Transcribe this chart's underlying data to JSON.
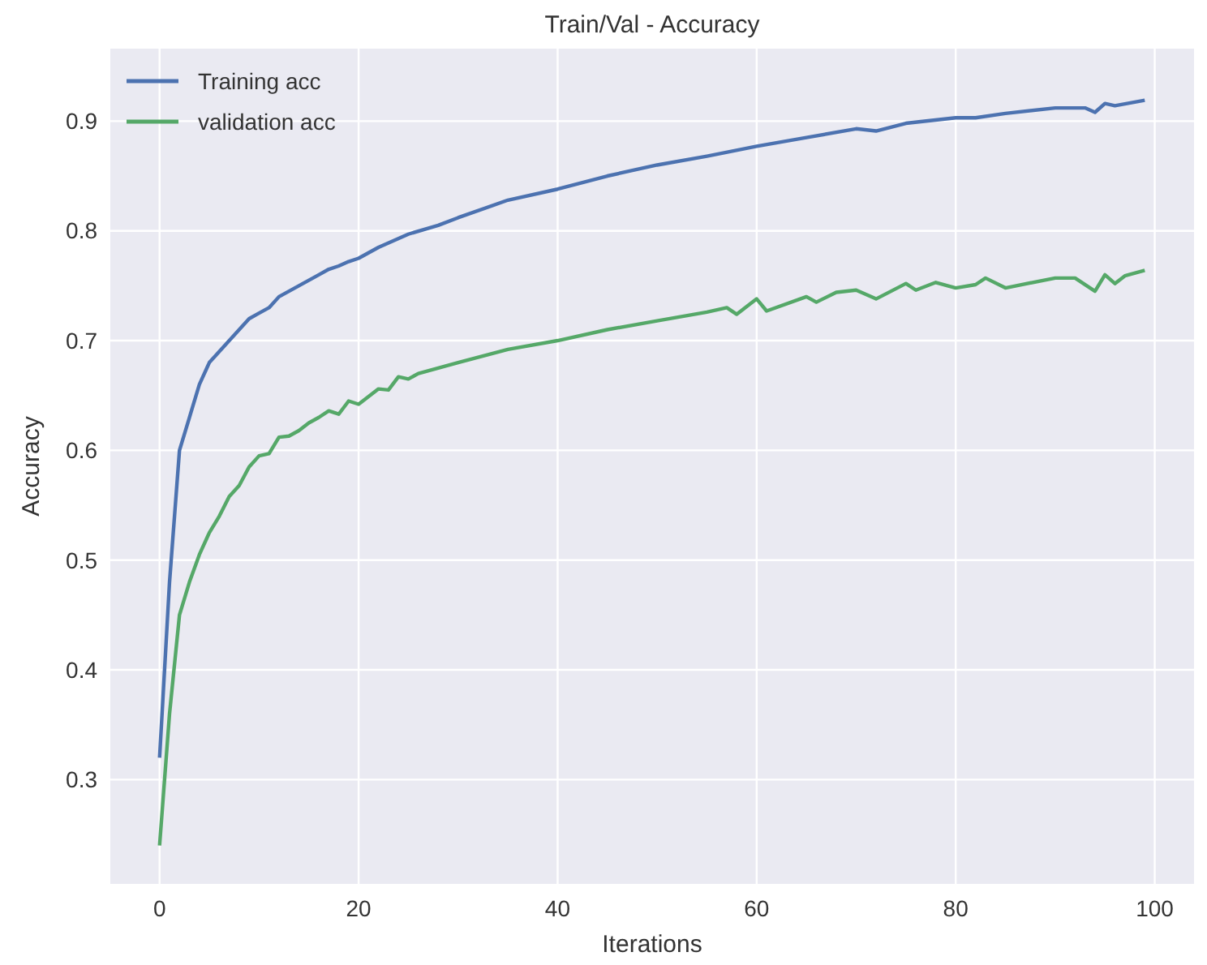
{
  "chart_data": {
    "type": "line",
    "title": "Train/Val - Accuracy",
    "xlabel": "Iterations",
    "ylabel": "Accuracy",
    "xlim": [
      -4.95,
      103.95
    ],
    "ylim": [
      0.205,
      0.966
    ],
    "xticks": [
      0,
      20,
      40,
      60,
      80,
      100
    ],
    "yticks": [
      0.3,
      0.4,
      0.5,
      0.6,
      0.7,
      0.8,
      0.9
    ],
    "grid": true,
    "legend": "top left",
    "line_style": "solid",
    "marker": "none",
    "series": [
      {
        "name": "Training acc",
        "color": "#4c72b0",
        "x": [
          0,
          1,
          2,
          3,
          4,
          5,
          6,
          7,
          8,
          9,
          10,
          11,
          12,
          13,
          14,
          15,
          16,
          17,
          18,
          19,
          20,
          22,
          25,
          28,
          30,
          35,
          40,
          45,
          50,
          55,
          60,
          65,
          70,
          72,
          75,
          80,
          82,
          85,
          90,
          93,
          94,
          95,
          96,
          99
        ],
        "values": [
          0.32,
          0.48,
          0.6,
          0.63,
          0.66,
          0.68,
          0.69,
          0.7,
          0.71,
          0.72,
          0.725,
          0.73,
          0.74,
          0.745,
          0.75,
          0.755,
          0.76,
          0.765,
          0.768,
          0.772,
          0.775,
          0.785,
          0.797,
          0.805,
          0.812,
          0.828,
          0.838,
          0.85,
          0.86,
          0.868,
          0.877,
          0.885,
          0.893,
          0.891,
          0.898,
          0.903,
          0.903,
          0.907,
          0.912,
          0.912,
          0.908,
          0.916,
          0.914,
          0.919
        ]
      },
      {
        "name": "validation acc",
        "color": "#55a868",
        "x": [
          0,
          1,
          2,
          3,
          4,
          5,
          6,
          7,
          8,
          9,
          10,
          11,
          12,
          13,
          14,
          15,
          16,
          17,
          18,
          19,
          20,
          22,
          23,
          24,
          25,
          26,
          30,
          35,
          40,
          45,
          50,
          55,
          57,
          58,
          60,
          61,
          65,
          66,
          68,
          70,
          72,
          75,
          76,
          78,
          80,
          82,
          83,
          85,
          90,
          92,
          94,
          95,
          96,
          97,
          99
        ],
        "values": [
          0.24,
          0.36,
          0.45,
          0.48,
          0.505,
          0.525,
          0.54,
          0.558,
          0.568,
          0.585,
          0.595,
          0.597,
          0.612,
          0.613,
          0.618,
          0.625,
          0.63,
          0.636,
          0.633,
          0.645,
          0.642,
          0.656,
          0.655,
          0.667,
          0.665,
          0.67,
          0.68,
          0.692,
          0.7,
          0.71,
          0.718,
          0.726,
          0.73,
          0.724,
          0.738,
          0.727,
          0.74,
          0.735,
          0.744,
          0.746,
          0.738,
          0.752,
          0.746,
          0.753,
          0.748,
          0.751,
          0.757,
          0.748,
          0.757,
          0.757,
          0.745,
          0.76,
          0.752,
          0.759,
          0.764
        ]
      }
    ]
  }
}
